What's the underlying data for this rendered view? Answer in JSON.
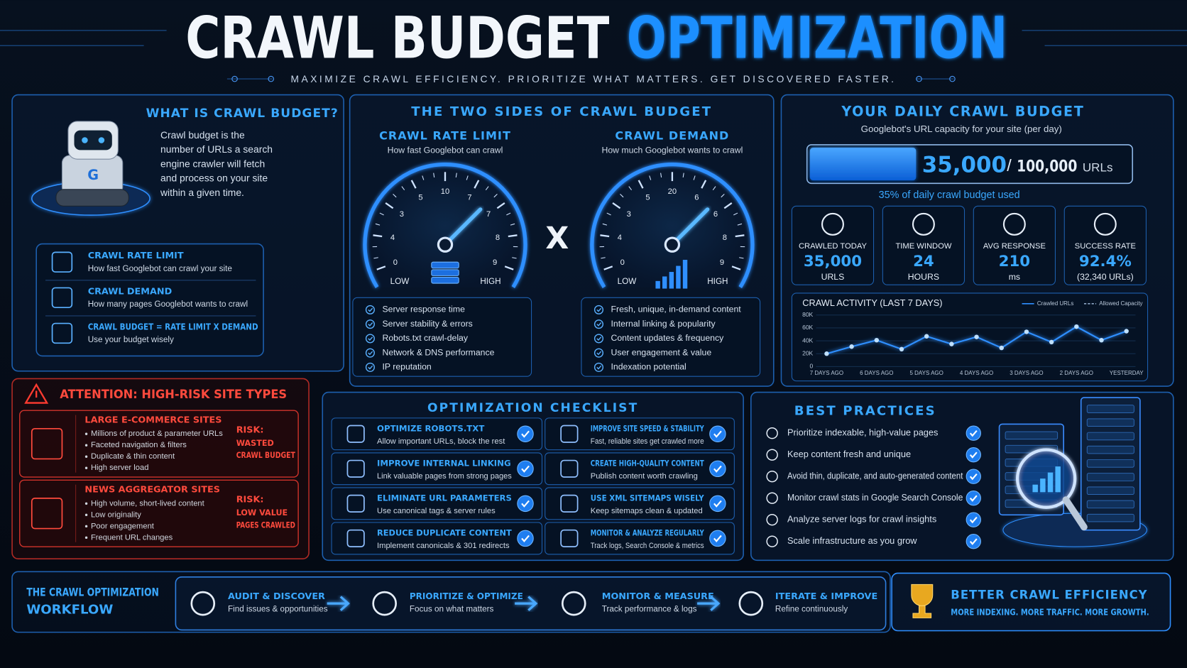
{
  "header": {
    "title_part1": "CRAWL BUDGET",
    "title_part2": "OPTIMIZATION",
    "tagline": "MAXIMIZE CRAWL EFFICIENCY. PRIORITIZE WHAT MATTERS. GET DISCOVERED FASTER."
  },
  "what_is": {
    "title": "WHAT IS CRAWL BUDGET?",
    "robot_logo": "G",
    "description_lines": [
      "Crawl budget is the",
      "number of URLs a search",
      "engine crawler will fetch",
      "and process on your site",
      "within a given time."
    ],
    "items": [
      {
        "title": "CRAWL RATE LIMIT",
        "text": "How fast Googlebot can crawl your site"
      },
      {
        "title": "CRAWL DEMAND",
        "text": "How many pages Googlebot wants to crawl"
      },
      {
        "title": "CRAWL BUDGET = RATE LIMIT X DEMAND",
        "text": "Use your budget wisely"
      }
    ]
  },
  "attention": {
    "title": "ATTENTION: HIGH-RISK SITE TYPES",
    "sites": [
      {
        "title": "LARGE E-COMMERCE SITES",
        "bullets": [
          "Millions of product & parameter URLs",
          "Faceted navigation & filters",
          "Duplicate & thin content",
          "High server load"
        ],
        "risk_label": "RISK:",
        "risk_lines": [
          "WASTED",
          "CRAWL BUDGET"
        ]
      },
      {
        "title": "NEWS AGGREGATOR SITES",
        "bullets": [
          "High volume, short-lived content",
          "Low originality",
          "Poor engagement",
          "Frequent URL changes"
        ],
        "risk_label": "RISK:",
        "risk_lines": [
          "LOW VALUE",
          "PAGES CRAWLED"
        ]
      }
    ]
  },
  "two_sides": {
    "title": "THE TWO SIDES OF CRAWL BUDGET",
    "operator": "X",
    "gauges": [
      {
        "title": "CRAWL RATE LIMIT",
        "subtitle": "How fast Googlebot can crawl",
        "tick_labels": [
          "0",
          "4",
          "3",
          "5",
          "10",
          "7",
          "7",
          "8",
          "9"
        ],
        "low": "LOW",
        "high": "HIGH",
        "factors": [
          "Server response time",
          "Server stability & errors",
          "Robots.txt crawl-delay",
          "Network & DNS performance",
          "IP reputation"
        ]
      },
      {
        "title": "CRAWL DEMAND",
        "subtitle": "How much Googlebot wants to crawl",
        "tick_labels": [
          "0",
          "4",
          "3",
          "5",
          "20",
          "6",
          "6",
          "8",
          "9"
        ],
        "low": "LOW",
        "high": "HIGH",
        "factors": [
          "Fresh, unique, in-demand content",
          "Internal linking & popularity",
          "Content updates & frequency",
          "User engagement & value",
          "Indexation potential"
        ]
      }
    ]
  },
  "daily": {
    "title": "YOUR DAILY CRAWL BUDGET",
    "subtitle": "Googlebot's URL capacity for your site (per day)",
    "used": {
      "value": 35000,
      "label": "35,000"
    },
    "separator": "/",
    "capacity": {
      "value": 100000,
      "label": "100,000"
    },
    "unit": "URLs",
    "usage_note": "35% of daily crawl budget used",
    "stats": [
      {
        "label": "CRAWLED TODAY",
        "value": "35,000",
        "unit": "URLS"
      },
      {
        "label": "TIME WINDOW",
        "value": "24",
        "unit": "HOURS"
      },
      {
        "label": "AVG RESPONSE",
        "value": "210",
        "unit": "ms"
      },
      {
        "label": "SUCCESS RATE",
        "value": "92.4%",
        "unit": "(32,340 URLs)"
      }
    ]
  },
  "crawl_activity": {
    "type": "line",
    "title": "CRAWL ACTIVITY (LAST 7 DAYS)",
    "categories": [
      "7 DAYS AGO",
      null,
      "6 DAYS AGO",
      null,
      "5 DAYS AGO",
      null,
      "4 DAYS AGO",
      null,
      "3 DAYS AGO",
      null,
      "2 DAYS AGO",
      null,
      "YESTERDAY"
    ],
    "series": [
      {
        "name": "Crawled URLs",
        "color": "#2f8fff",
        "values": [
          20000,
          31000,
          41000,
          27000,
          47000,
          35000,
          46000,
          29000,
          54000,
          38000,
          62000,
          41000,
          55000
        ]
      },
      {
        "name": "Allowed Capacity",
        "color": "#8fa8c8",
        "values": [
          null,
          null,
          null,
          null,
          null,
          null,
          null,
          null,
          null,
          null,
          null,
          null,
          null
        ]
      }
    ],
    "ylim": [
      0,
      80000
    ],
    "yticks": [
      0,
      {
        "value": 20000,
        "label": "20K"
      },
      {
        "value": 40000,
        "label": "40K"
      },
      {
        "value": 60000,
        "label": "60K"
      },
      {
        "value": 80000,
        "label": "80K"
      }
    ],
    "grid": true
  },
  "checklist": {
    "title": "OPTIMIZATION  CHECKLIST",
    "items": [
      {
        "title": "OPTIMIZE ROBOTS.TXT",
        "text": "Allow important URLs, block the rest"
      },
      {
        "title": "IMPROVE INTERNAL LINKING",
        "text": "Link valuable pages from strong pages"
      },
      {
        "title": "ELIMINATE URL PARAMETERS",
        "text": "Use canonical tags & server rules"
      },
      {
        "title": "REDUCE DUPLICATE CONTENT",
        "text": "Implement canonicals & 301 redirects"
      },
      {
        "title": "IMPROVE SITE SPEED & STABILITY",
        "text": "Fast, reliable sites get crawled more"
      },
      {
        "title": "CREATE HIGH-QUALITY CONTENT",
        "text": "Publish content worth crawling"
      },
      {
        "title": "USE XML SITEMAPS WISELY",
        "text": "Keep sitemaps clean & updated"
      },
      {
        "title": "MONITOR & ANALYZE REGULARLY",
        "text": "Track logs, Search Console & metrics"
      }
    ]
  },
  "best_practices": {
    "title": "BEST PRACTICES",
    "items": [
      "Prioritize indexable, high-value pages",
      "Keep content fresh and unique",
      "Avoid thin, duplicate, and auto-generated content",
      "Monitor crawl stats in Google Search Console",
      "Analyze server logs for crawl insights",
      "Scale infrastructure as you grow"
    ]
  },
  "workflow": {
    "title_lines": [
      "THE CRAWL OPTIMIZATION",
      "WORKFLOW"
    ],
    "steps": [
      {
        "title": "AUDIT & DISCOVER",
        "text": "Find issues & opportunities"
      },
      {
        "title": "PRIORITIZE & OPTIMIZE",
        "text": "Focus on what matters"
      },
      {
        "title": "MONITOR & MEASURE",
        "text": "Track performance & logs"
      },
      {
        "title": "ITERATE & IMPROVE",
        "text": "Refine continuously"
      }
    ]
  },
  "result": {
    "title": "BETTER CRAWL EFFICIENCY",
    "text": "MORE INDEXING. MORE TRAFFIC. MORE GROWTH."
  }
}
